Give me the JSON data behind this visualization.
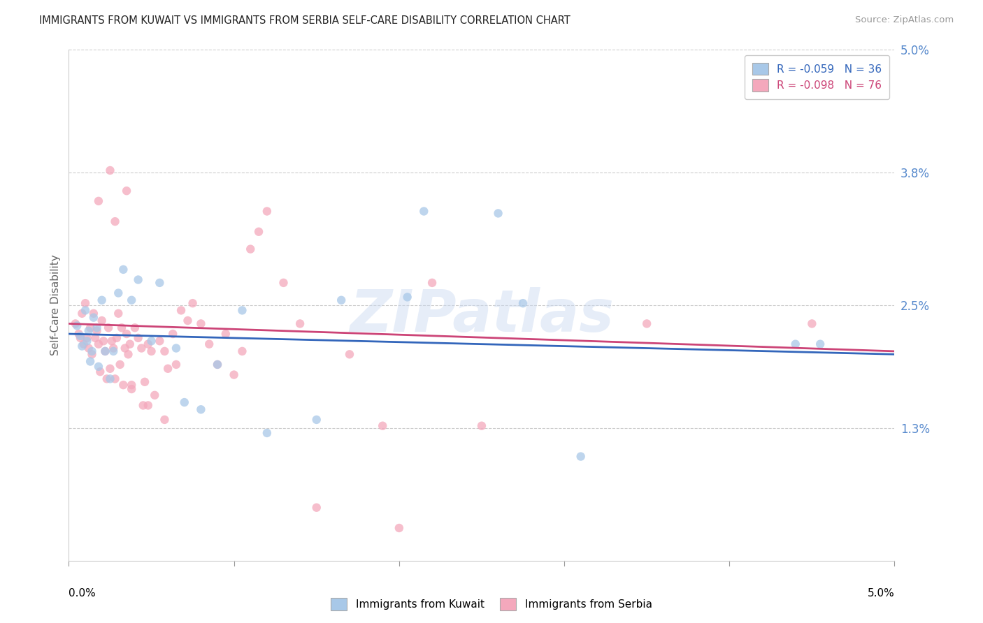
{
  "title": "IMMIGRANTS FROM KUWAIT VS IMMIGRANTS FROM SERBIA SELF-CARE DISABILITY CORRELATION CHART",
  "source": "Source: ZipAtlas.com",
  "ylabel": "Self-Care Disability",
  "xmin": 0.0,
  "xmax": 5.0,
  "ymin": 0.0,
  "ymax": 5.0,
  "watermark": "ZIPatlas",
  "kuwait_R": -0.059,
  "kuwait_N": 36,
  "serbia_R": -0.098,
  "serbia_N": 76,
  "kuwait_color": "#a8c8e8",
  "serbia_color": "#f4a8bc",
  "kuwait_line_color": "#3366bb",
  "serbia_line_color": "#cc4477",
  "gridline_color": "#cccccc",
  "title_color": "#222222",
  "right_axis_color": "#5588cc",
  "scatter_alpha": 0.75,
  "scatter_size": 80,
  "right_yticks": [
    1.3,
    2.5,
    3.8,
    5.0
  ],
  "right_ytick_labels": [
    "1.3%",
    "2.5%",
    "3.8%",
    "5.0%"
  ],
  "kuwait_line_start_y": 2.22,
  "kuwait_line_end_y": 2.02,
  "serbia_line_start_y": 2.32,
  "serbia_line_end_y": 2.05,
  "kuwait_points_x": [
    0.05,
    0.07,
    0.08,
    0.1,
    0.11,
    0.12,
    0.13,
    0.14,
    0.15,
    0.17,
    0.18,
    0.2,
    0.22,
    0.25,
    0.27,
    0.3,
    0.33,
    0.38,
    0.42,
    0.5,
    0.55,
    0.65,
    0.7,
    0.8,
    0.9,
    1.05,
    1.2,
    1.5,
    1.65,
    2.05,
    2.6,
    2.75,
    3.1,
    4.4,
    4.55,
    2.15
  ],
  "kuwait_points_y": [
    2.3,
    2.2,
    2.1,
    2.45,
    2.15,
    2.25,
    1.95,
    2.05,
    2.38,
    2.28,
    1.9,
    2.55,
    2.05,
    1.78,
    2.05,
    2.62,
    2.85,
    2.55,
    2.75,
    2.15,
    2.72,
    2.08,
    1.55,
    1.48,
    1.92,
    2.45,
    1.25,
    1.38,
    2.55,
    2.58,
    3.4,
    2.52,
    1.02,
    2.12,
    2.12,
    3.42
  ],
  "serbia_points_x": [
    0.04,
    0.06,
    0.07,
    0.08,
    0.09,
    0.1,
    0.11,
    0.12,
    0.13,
    0.14,
    0.15,
    0.16,
    0.17,
    0.18,
    0.19,
    0.2,
    0.21,
    0.22,
    0.23,
    0.24,
    0.25,
    0.26,
    0.27,
    0.28,
    0.29,
    0.3,
    0.31,
    0.32,
    0.33,
    0.34,
    0.35,
    0.36,
    0.37,
    0.38,
    0.4,
    0.42,
    0.44,
    0.46,
    0.48,
    0.5,
    0.52,
    0.55,
    0.58,
    0.6,
    0.63,
    0.65,
    0.68,
    0.72,
    0.75,
    0.8,
    0.85,
    0.9,
    0.95,
    1.0,
    1.05,
    1.1,
    1.15,
    1.2,
    1.3,
    1.4,
    1.5,
    1.7,
    1.9,
    2.0,
    2.2,
    2.5,
    3.5,
    0.25,
    0.35,
    0.45,
    4.5,
    0.18,
    0.28,
    0.38,
    0.48,
    0.58
  ],
  "serbia_points_y": [
    2.32,
    2.22,
    2.18,
    2.42,
    2.12,
    2.52,
    2.18,
    2.08,
    2.28,
    2.02,
    2.42,
    2.18,
    2.25,
    2.12,
    1.85,
    2.35,
    2.15,
    2.05,
    1.78,
    2.28,
    1.88,
    2.15,
    2.08,
    1.78,
    2.18,
    2.42,
    1.92,
    2.28,
    1.72,
    2.08,
    2.22,
    2.02,
    2.12,
    1.68,
    2.28,
    2.18,
    2.08,
    1.75,
    2.12,
    2.05,
    1.62,
    2.15,
    2.05,
    1.88,
    2.22,
    1.92,
    2.45,
    2.35,
    2.52,
    2.32,
    2.12,
    1.92,
    2.22,
    1.82,
    2.05,
    3.05,
    3.22,
    3.42,
    2.72,
    2.32,
    0.52,
    2.02,
    1.32,
    0.32,
    2.72,
    1.32,
    2.32,
    3.82,
    3.62,
    1.52,
    2.32,
    3.52,
    3.32,
    1.72,
    1.52,
    1.38
  ]
}
